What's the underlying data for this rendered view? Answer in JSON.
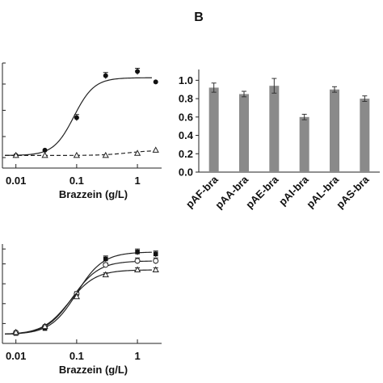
{
  "panel_label": "B",
  "chart_data": [
    {
      "id": "top-left",
      "type": "line",
      "xlabel": "Brazzein (g/L)",
      "x_scale": "log",
      "xlim": [
        0.006,
        2.5
      ],
      "x_ticks": [
        0.01,
        0.1,
        1
      ],
      "x_tick_labels": [
        "0.01",
        "0.1",
        "1"
      ],
      "ylim": [
        0,
        1
      ],
      "y_ticks": [
        0.1,
        0.3,
        0.55,
        0.8,
        1.0
      ],
      "series": [
        {
          "style": "solid",
          "marker": "filled-circle",
          "x": [
            0.01,
            0.03,
            0.1,
            0.3,
            1.0,
            2.0
          ],
          "y": [
            0.12,
            0.17,
            0.48,
            0.88,
            0.92,
            0.82
          ],
          "err": [
            0.0,
            0.0,
            0.03,
            0.03,
            0.03,
            0.0
          ],
          "fit": {
            "bottom": 0.12,
            "top": 0.86,
            "ec50": 0.09,
            "hill": 2.6
          }
        },
        {
          "style": "dashed",
          "marker": "open-triangle",
          "x": [
            0.01,
            0.03,
            0.1,
            0.3,
            1.0,
            2.0
          ],
          "y": [
            0.12,
            0.12,
            0.12,
            0.12,
            0.14,
            0.17
          ],
          "err": [
            0,
            0,
            0,
            0,
            0,
            0
          ],
          "fit": {
            "bottom": 0.12,
            "top": 0.17,
            "ec50": 0.7,
            "hill": 2.0
          }
        }
      ]
    },
    {
      "id": "top-right",
      "type": "bar",
      "categories": [
        "pAF-bra",
        "pAA-bra",
        "pAE-bra",
        "pAI-bra",
        "pAL-bra",
        "pAS-bra"
      ],
      "values": [
        0.92,
        0.85,
        0.94,
        0.6,
        0.9,
        0.8
      ],
      "errors": [
        0.05,
        0.03,
        0.08,
        0.03,
        0.03,
        0.03
      ],
      "ylim": [
        0,
        1.1
      ],
      "y_ticks": [
        0.0,
        0.2,
        0.4,
        0.6,
        0.8,
        1.0
      ],
      "y_tick_labels": [
        "0.0",
        "0.2",
        "0.4",
        "0.6",
        "0.8",
        "1.0"
      ],
      "bar_color": "#8a8a8a"
    },
    {
      "id": "bottom-left",
      "type": "line",
      "xlabel": "Brazzein (g/L)",
      "x_scale": "log",
      "xlim": [
        0.006,
        2.5
      ],
      "x_ticks": [
        0.01,
        0.1,
        1
      ],
      "x_tick_labels": [
        "0.01",
        "0.1",
        "1"
      ],
      "ylim": [
        0,
        1
      ],
      "y_ticks": [
        0.2,
        0.4,
        0.6,
        0.8,
        0.95
      ],
      "series": [
        {
          "marker": "filled-square",
          "x": [
            0.01,
            0.03,
            0.1,
            0.3,
            1.0,
            2.0
          ],
          "y": [
            0.1,
            0.15,
            0.5,
            0.85,
            0.92,
            0.9
          ],
          "err": [
            0,
            0,
            0.02,
            0.03,
            0.03,
            0.03
          ],
          "fit": {
            "bottom": 0.09,
            "top": 0.92,
            "ec50": 0.1,
            "hill": 2.0
          }
        },
        {
          "marker": "open-circle",
          "x": [
            0.01,
            0.03,
            0.1,
            0.3,
            1.0,
            2.0
          ],
          "y": [
            0.11,
            0.17,
            0.5,
            0.79,
            0.83,
            0.83
          ],
          "err": [
            0,
            0,
            0.02,
            0.02,
            0.03,
            0.03
          ],
          "fit": {
            "bottom": 0.09,
            "top": 0.83,
            "ec50": 0.085,
            "hill": 2.0
          }
        },
        {
          "marker": "open-triangle",
          "x": [
            0.01,
            0.03,
            0.1,
            0.3,
            1.0,
            2.0
          ],
          "y": [
            0.11,
            0.17,
            0.47,
            0.69,
            0.74,
            0.74
          ],
          "err": [
            0,
            0,
            0.02,
            0.02,
            0.02,
            0.02
          ],
          "fit": {
            "bottom": 0.09,
            "top": 0.74,
            "ec50": 0.075,
            "hill": 2.0
          }
        }
      ]
    }
  ]
}
